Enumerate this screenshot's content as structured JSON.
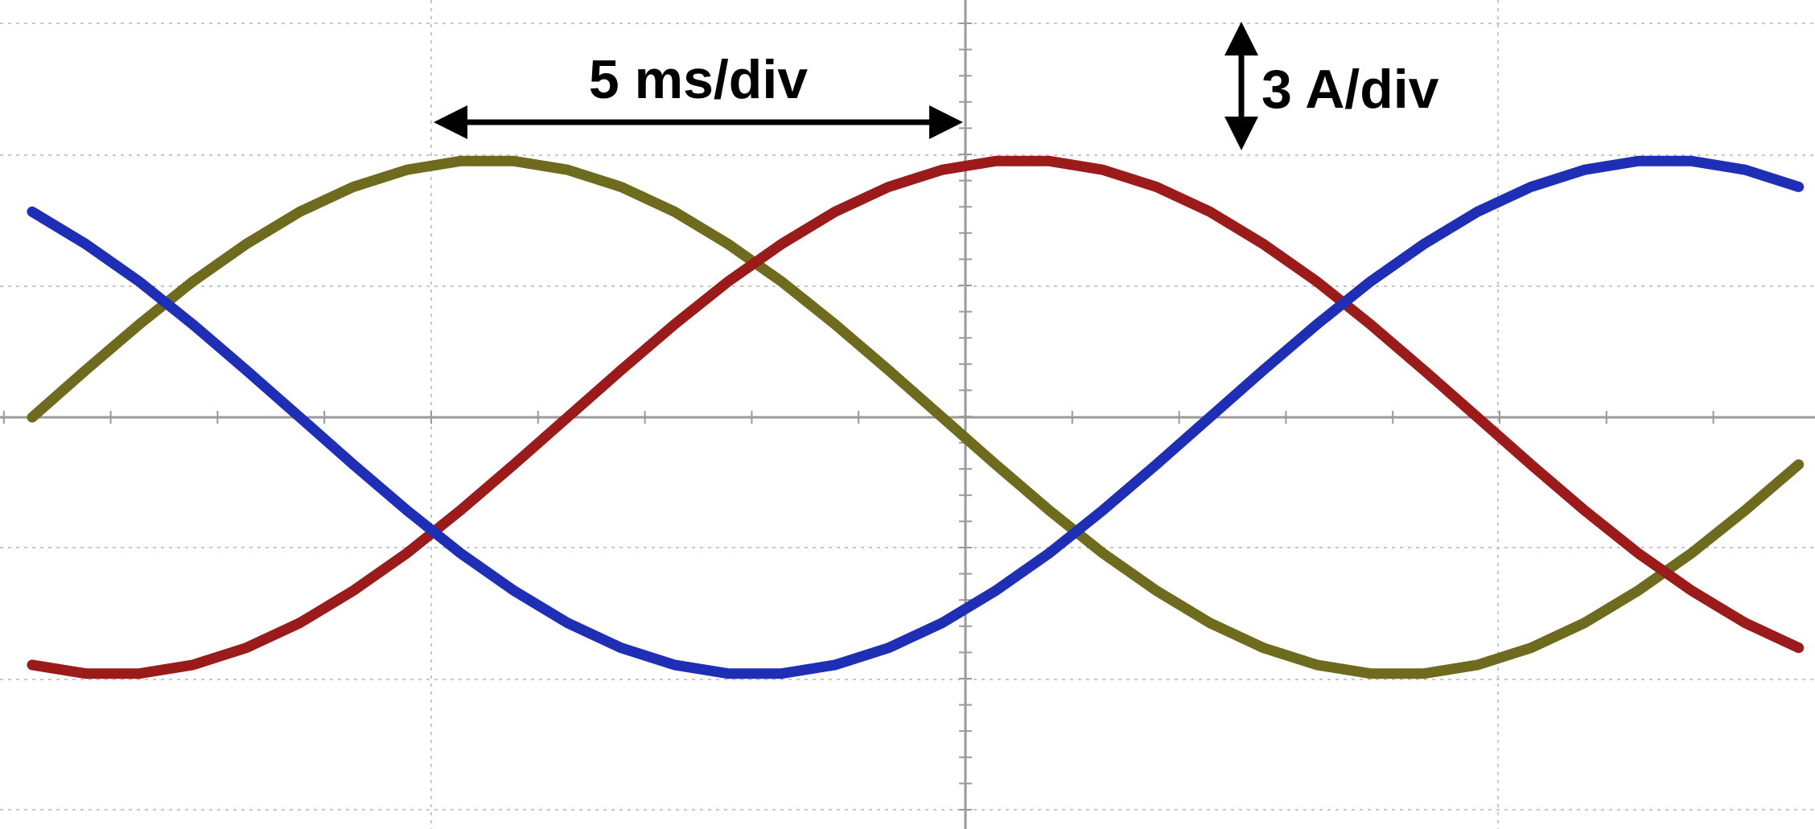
{
  "chart_data": {
    "type": "line",
    "annotations": [
      "5 ms/div",
      "3 A/div"
    ],
    "x": [
      0,
      0.5,
      1,
      1.5,
      2,
      2.5,
      3,
      3.5,
      4,
      4.5,
      5,
      5.5,
      6,
      6.5,
      7,
      7.5,
      8,
      8.5,
      9,
      9.5,
      10,
      10.5,
      11,
      11.5,
      12,
      12.5,
      13,
      13.5,
      14,
      14.5,
      15,
      15.5,
      16,
      16.5
    ],
    "xlim": [
      0,
      16.6
    ],
    "ylim": [
      -9.43,
      9.56
    ],
    "grid": true,
    "series": [
      {
        "color": "#6e6a1e",
        "values": [
          0,
          1.08,
          2.13,
          3.11,
          3.97,
          4.71,
          5.28,
          5.67,
          5.87,
          5.87,
          5.67,
          5.28,
          4.71,
          3.97,
          3.11,
          2.13,
          1.08,
          0,
          -1.08,
          -2.13,
          -3.11,
          -3.97,
          -4.71,
          -5.28,
          -5.67,
          -5.87,
          -5.87,
          -5.67,
          -5.28,
          -4.71,
          -3.97,
          -3.11,
          -2.13,
          -1.08
        ]
      },
      {
        "color": "#9b1a1a",
        "values": [
          -5.67,
          -5.87,
          -5.87,
          -5.67,
          -5.28,
          -4.71,
          -3.97,
          -3.11,
          -2.13,
          -1.08,
          0,
          1.08,
          2.13,
          3.11,
          3.97,
          4.71,
          5.28,
          5.67,
          5.87,
          5.87,
          5.67,
          5.28,
          4.71,
          3.97,
          3.11,
          2.13,
          1.08,
          0,
          -1.08,
          -2.13,
          -3.11,
          -3.97,
          -4.71,
          -5.28
        ]
      },
      {
        "color": "#1f2fb5",
        "values": [
          4.71,
          3.97,
          3.11,
          2.13,
          1.08,
          0,
          -1.08,
          -2.13,
          -3.11,
          -3.97,
          -4.71,
          -5.28,
          -5.67,
          -5.87,
          -5.87,
          -5.67,
          -5.28,
          -4.71,
          -3.97,
          -3.11,
          -2.13,
          -1.08,
          0,
          1.08,
          2.13,
          3.11,
          3.97,
          4.71,
          5.28,
          5.67,
          5.87,
          5.87,
          5.67,
          5.28
        ]
      }
    ]
  }
}
